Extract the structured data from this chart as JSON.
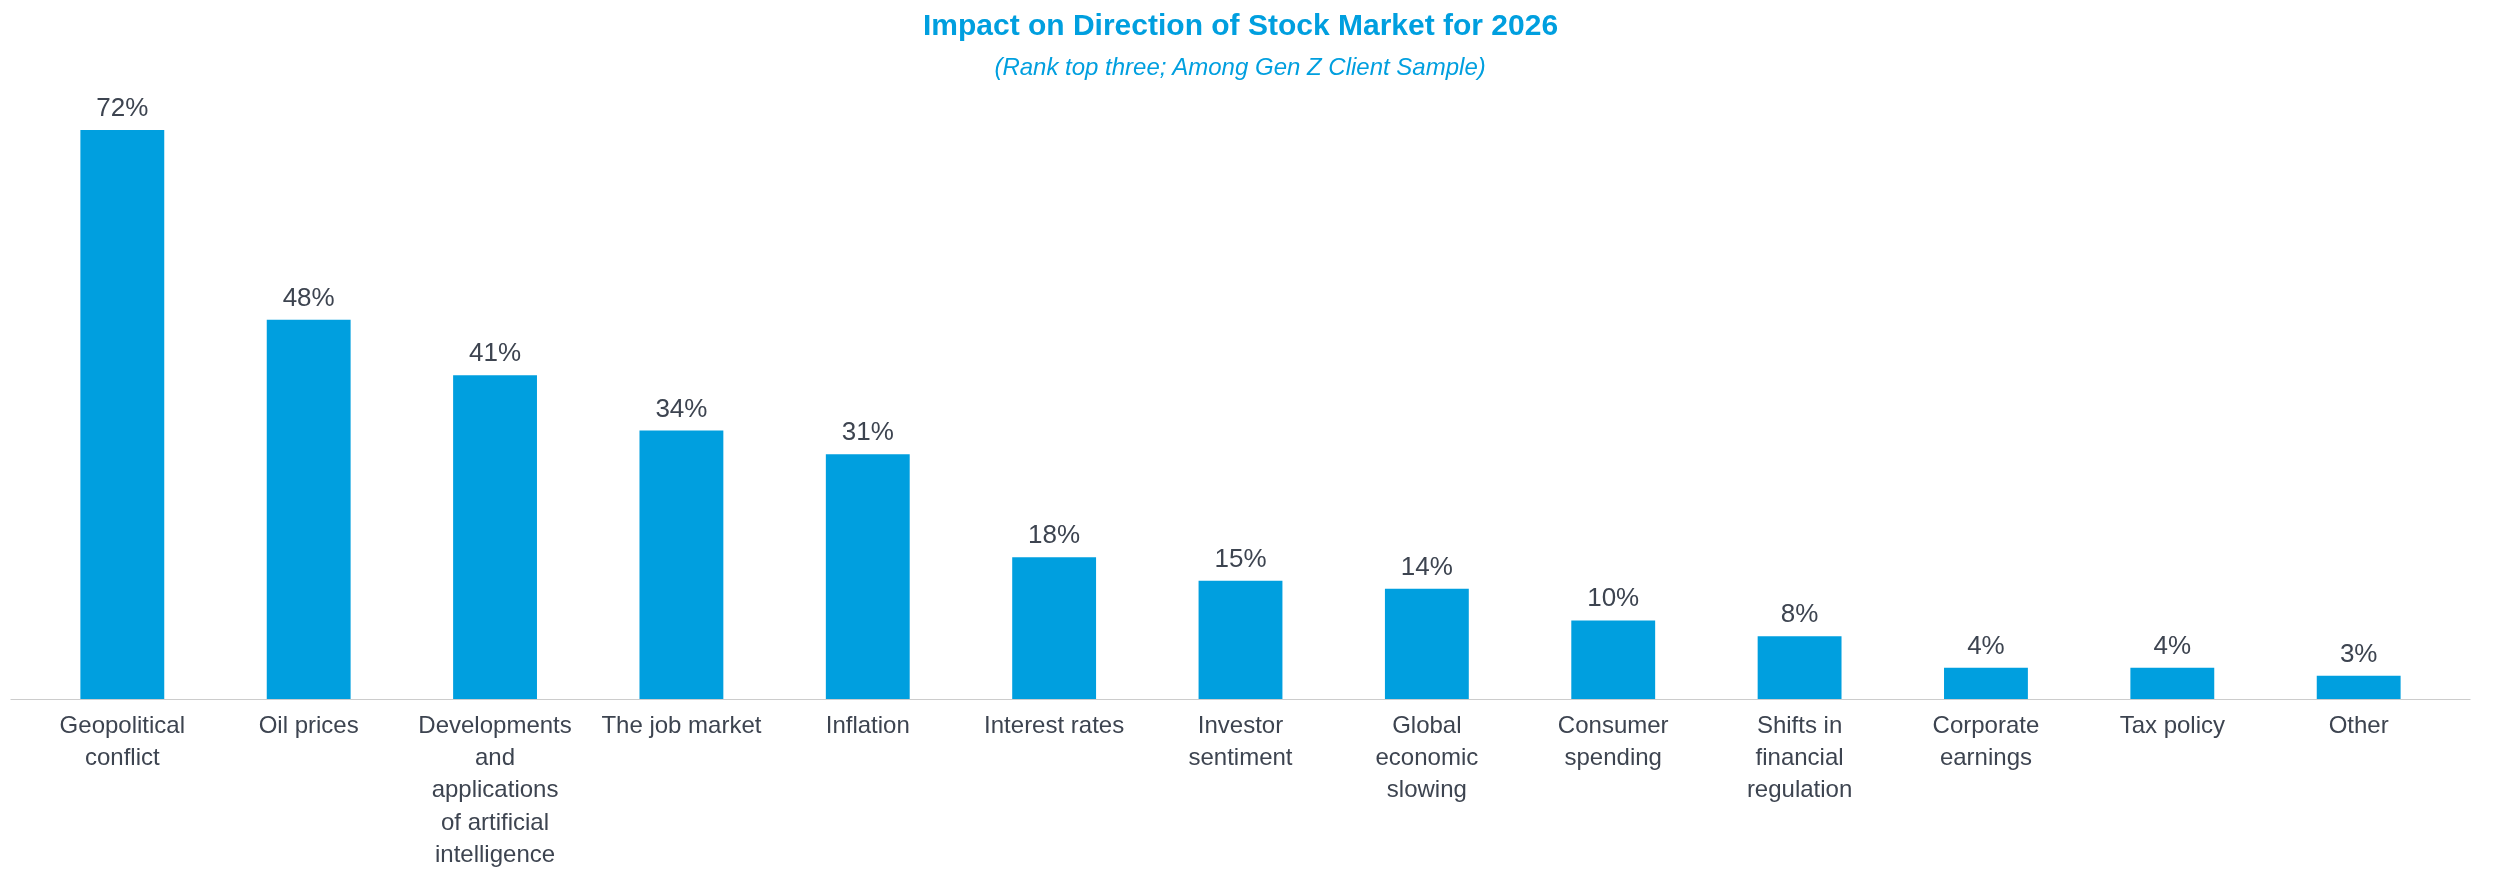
{
  "chart_data": {
    "type": "bar",
    "title": "Impact on Direction of Stock Market for 2026",
    "subtitle": "(Rank top three; Among Gen Z Client Sample)",
    "categories": [
      "Geopolitical conflict",
      "Oil prices",
      "Developments and applications of artificial intelligence",
      "The job market",
      "Inflation",
      "Interest rates",
      "Investor sentiment",
      "Global economic slowing",
      "Consumer spending",
      "Shifts in financial regulation",
      "Corporate earnings",
      "Tax policy",
      "Other"
    ],
    "values": [
      72,
      48,
      41,
      34,
      31,
      18,
      15,
      14,
      10,
      8,
      4,
      4,
      3
    ],
    "value_labels": [
      "72%",
      "48%",
      "41%",
      "34%",
      "31%",
      "18%",
      "15%",
      "14%",
      "10%",
      "8%",
      "4%",
      "4%",
      "3%"
    ],
    "color": "#009fdf",
    "grid": false
  }
}
